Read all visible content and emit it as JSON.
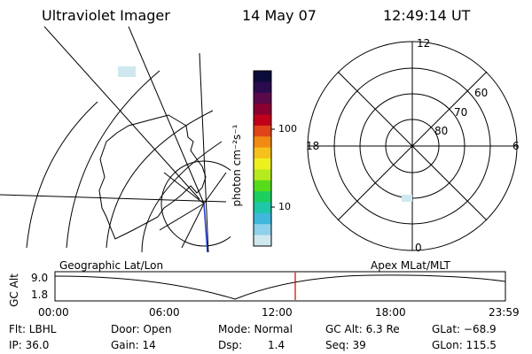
{
  "header": {
    "instrument": "Ultraviolet Imager",
    "date": "14 May 07",
    "time": "12:49:14 UT"
  },
  "colorbar": {
    "label": "photon cm⁻²s⁻¹",
    "ticks": [
      "100",
      "10"
    ],
    "colors": [
      "#0b0b3a",
      "#2a0b4d",
      "#5a0a4a",
      "#8a0033",
      "#c0001a",
      "#e0451a",
      "#f18a12",
      "#f6c11a",
      "#eef01e",
      "#b7ea1e",
      "#57dc1c",
      "#1ccf5e",
      "#1fc6a8",
      "#40b7dd",
      "#8fd0ea",
      "#cfe8ef"
    ]
  },
  "polar_plot": {
    "clock_labels": [
      "12",
      "18",
      "6",
      "0"
    ],
    "lat_labels": [
      "60",
      "70",
      "80"
    ]
  },
  "timeline": {
    "left_label": "Geographic Lat/Lon",
    "right_label": "Apex MLat/MLT",
    "axis_title": "GC Alt",
    "y_ticks": [
      "9.0",
      "1.8"
    ],
    "x_ticks": [
      "00:00",
      "06:00",
      "12:00",
      "18:00",
      "23:59"
    ],
    "marker_color": "#d00000"
  },
  "info": {
    "flt": "Flt: LBHL",
    "ip": "IP: 36.0",
    "door": "Door: Open",
    "gain": "Gain: 14",
    "mode": "Mode: Normal",
    "dsp_label": "Dsp:",
    "dsp_value": "1.4",
    "gcalt": "GC Alt: 6.3 Re",
    "seq": "Seq: 39",
    "glat": "GLat: −68.9",
    "glon": "GLon: 115.5"
  }
}
